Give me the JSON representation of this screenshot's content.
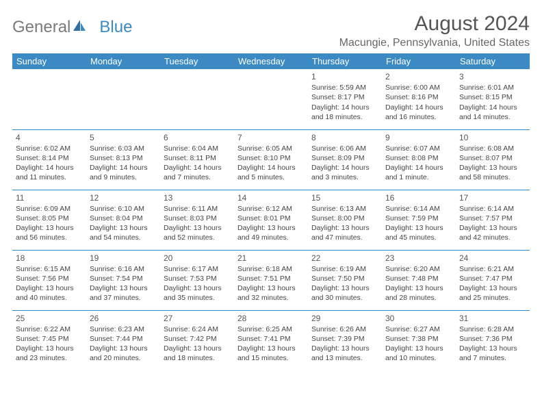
{
  "brand": {
    "part1": "General",
    "part2": "Blue"
  },
  "title": "August 2024",
  "location": "Macungie, Pennsylvania, United States",
  "colors": {
    "header_bg": "#3b8ac4",
    "header_fg": "#ffffff",
    "text": "#444444",
    "border": "#3b8ac4"
  },
  "weekday_labels": [
    "Sunday",
    "Monday",
    "Tuesday",
    "Wednesday",
    "Thursday",
    "Friday",
    "Saturday"
  ],
  "weeks": [
    [
      null,
      null,
      null,
      null,
      {
        "n": "1",
        "sr": "5:59 AM",
        "ss": "8:17 PM",
        "dl": "14 hours and 18 minutes."
      },
      {
        "n": "2",
        "sr": "6:00 AM",
        "ss": "8:16 PM",
        "dl": "14 hours and 16 minutes."
      },
      {
        "n": "3",
        "sr": "6:01 AM",
        "ss": "8:15 PM",
        "dl": "14 hours and 14 minutes."
      }
    ],
    [
      {
        "n": "4",
        "sr": "6:02 AM",
        "ss": "8:14 PM",
        "dl": "14 hours and 11 minutes."
      },
      {
        "n": "5",
        "sr": "6:03 AM",
        "ss": "8:13 PM",
        "dl": "14 hours and 9 minutes."
      },
      {
        "n": "6",
        "sr": "6:04 AM",
        "ss": "8:11 PM",
        "dl": "14 hours and 7 minutes."
      },
      {
        "n": "7",
        "sr": "6:05 AM",
        "ss": "8:10 PM",
        "dl": "14 hours and 5 minutes."
      },
      {
        "n": "8",
        "sr": "6:06 AM",
        "ss": "8:09 PM",
        "dl": "14 hours and 3 minutes."
      },
      {
        "n": "9",
        "sr": "6:07 AM",
        "ss": "8:08 PM",
        "dl": "14 hours and 1 minute."
      },
      {
        "n": "10",
        "sr": "6:08 AM",
        "ss": "8:07 PM",
        "dl": "13 hours and 58 minutes."
      }
    ],
    [
      {
        "n": "11",
        "sr": "6:09 AM",
        "ss": "8:05 PM",
        "dl": "13 hours and 56 minutes."
      },
      {
        "n": "12",
        "sr": "6:10 AM",
        "ss": "8:04 PM",
        "dl": "13 hours and 54 minutes."
      },
      {
        "n": "13",
        "sr": "6:11 AM",
        "ss": "8:03 PM",
        "dl": "13 hours and 52 minutes."
      },
      {
        "n": "14",
        "sr": "6:12 AM",
        "ss": "8:01 PM",
        "dl": "13 hours and 49 minutes."
      },
      {
        "n": "15",
        "sr": "6:13 AM",
        "ss": "8:00 PM",
        "dl": "13 hours and 47 minutes."
      },
      {
        "n": "16",
        "sr": "6:14 AM",
        "ss": "7:59 PM",
        "dl": "13 hours and 45 minutes."
      },
      {
        "n": "17",
        "sr": "6:14 AM",
        "ss": "7:57 PM",
        "dl": "13 hours and 42 minutes."
      }
    ],
    [
      {
        "n": "18",
        "sr": "6:15 AM",
        "ss": "7:56 PM",
        "dl": "13 hours and 40 minutes."
      },
      {
        "n": "19",
        "sr": "6:16 AM",
        "ss": "7:54 PM",
        "dl": "13 hours and 37 minutes."
      },
      {
        "n": "20",
        "sr": "6:17 AM",
        "ss": "7:53 PM",
        "dl": "13 hours and 35 minutes."
      },
      {
        "n": "21",
        "sr": "6:18 AM",
        "ss": "7:51 PM",
        "dl": "13 hours and 32 minutes."
      },
      {
        "n": "22",
        "sr": "6:19 AM",
        "ss": "7:50 PM",
        "dl": "13 hours and 30 minutes."
      },
      {
        "n": "23",
        "sr": "6:20 AM",
        "ss": "7:48 PM",
        "dl": "13 hours and 28 minutes."
      },
      {
        "n": "24",
        "sr": "6:21 AM",
        "ss": "7:47 PM",
        "dl": "13 hours and 25 minutes."
      }
    ],
    [
      {
        "n": "25",
        "sr": "6:22 AM",
        "ss": "7:45 PM",
        "dl": "13 hours and 23 minutes."
      },
      {
        "n": "26",
        "sr": "6:23 AM",
        "ss": "7:44 PM",
        "dl": "13 hours and 20 minutes."
      },
      {
        "n": "27",
        "sr": "6:24 AM",
        "ss": "7:42 PM",
        "dl": "13 hours and 18 minutes."
      },
      {
        "n": "28",
        "sr": "6:25 AM",
        "ss": "7:41 PM",
        "dl": "13 hours and 15 minutes."
      },
      {
        "n": "29",
        "sr": "6:26 AM",
        "ss": "7:39 PM",
        "dl": "13 hours and 13 minutes."
      },
      {
        "n": "30",
        "sr": "6:27 AM",
        "ss": "7:38 PM",
        "dl": "13 hours and 10 minutes."
      },
      {
        "n": "31",
        "sr": "6:28 AM",
        "ss": "7:36 PM",
        "dl": "13 hours and 7 minutes."
      }
    ]
  ],
  "labels": {
    "sunrise": "Sunrise:",
    "sunset": "Sunset:",
    "daylight": "Daylight:"
  }
}
